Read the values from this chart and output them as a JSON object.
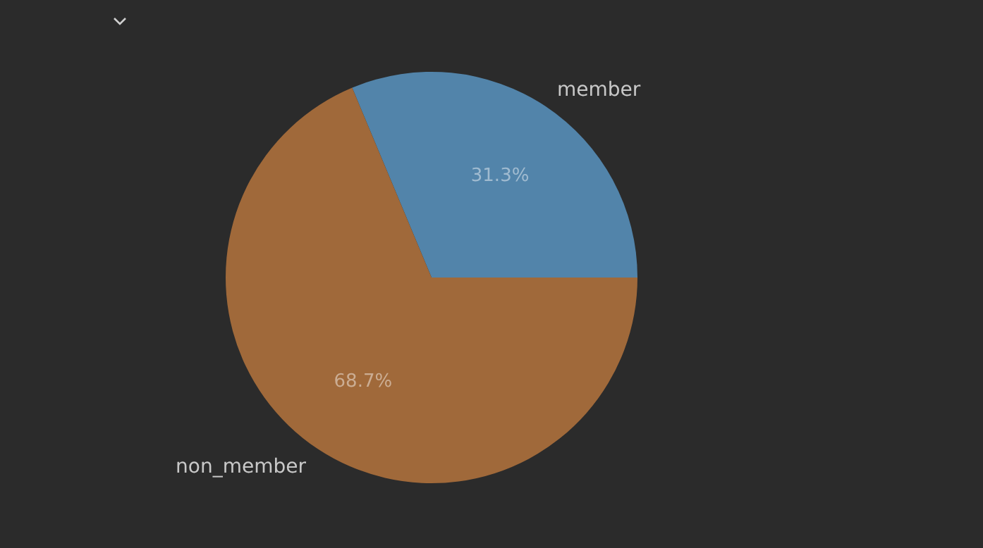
{
  "chart_data": {
    "type": "pie",
    "categories": [
      "member",
      "non_member"
    ],
    "values": [
      31.3,
      68.7
    ],
    "colors": [
      "#5284aa",
      "#a0693a"
    ],
    "value_labels": [
      "31.3%",
      "68.7%"
    ]
  }
}
